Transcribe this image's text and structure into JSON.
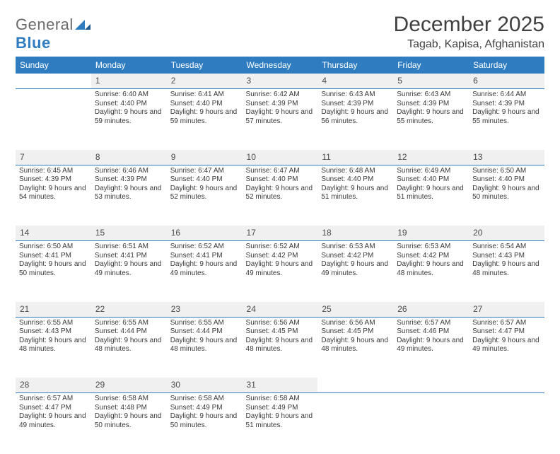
{
  "brand": {
    "word1": "General",
    "word2": "Blue"
  },
  "title": "December 2025",
  "location": "Tagab, Kapisa, Afghanistan",
  "colors": {
    "header_bg": "#2f7dc0",
    "header_text": "#ffffff",
    "daynum_bg": "#f0f0f0",
    "rule": "#2f7dc0",
    "body_text": "#3a3a3a"
  },
  "weekdays": [
    "Sunday",
    "Monday",
    "Tuesday",
    "Wednesday",
    "Thursday",
    "Friday",
    "Saturday"
  ],
  "weeks": [
    [
      null,
      {
        "n": "1",
        "sr": "6:40 AM",
        "ss": "4:40 PM",
        "dl": "9 hours and 59 minutes."
      },
      {
        "n": "2",
        "sr": "6:41 AM",
        "ss": "4:40 PM",
        "dl": "9 hours and 59 minutes."
      },
      {
        "n": "3",
        "sr": "6:42 AM",
        "ss": "4:39 PM",
        "dl": "9 hours and 57 minutes."
      },
      {
        "n": "4",
        "sr": "6:43 AM",
        "ss": "4:39 PM",
        "dl": "9 hours and 56 minutes."
      },
      {
        "n": "5",
        "sr": "6:43 AM",
        "ss": "4:39 PM",
        "dl": "9 hours and 55 minutes."
      },
      {
        "n": "6",
        "sr": "6:44 AM",
        "ss": "4:39 PM",
        "dl": "9 hours and 55 minutes."
      }
    ],
    [
      {
        "n": "7",
        "sr": "6:45 AM",
        "ss": "4:39 PM",
        "dl": "9 hours and 54 minutes."
      },
      {
        "n": "8",
        "sr": "6:46 AM",
        "ss": "4:39 PM",
        "dl": "9 hours and 53 minutes."
      },
      {
        "n": "9",
        "sr": "6:47 AM",
        "ss": "4:40 PM",
        "dl": "9 hours and 52 minutes."
      },
      {
        "n": "10",
        "sr": "6:47 AM",
        "ss": "4:40 PM",
        "dl": "9 hours and 52 minutes."
      },
      {
        "n": "11",
        "sr": "6:48 AM",
        "ss": "4:40 PM",
        "dl": "9 hours and 51 minutes."
      },
      {
        "n": "12",
        "sr": "6:49 AM",
        "ss": "4:40 PM",
        "dl": "9 hours and 51 minutes."
      },
      {
        "n": "13",
        "sr": "6:50 AM",
        "ss": "4:40 PM",
        "dl": "9 hours and 50 minutes."
      }
    ],
    [
      {
        "n": "14",
        "sr": "6:50 AM",
        "ss": "4:41 PM",
        "dl": "9 hours and 50 minutes."
      },
      {
        "n": "15",
        "sr": "6:51 AM",
        "ss": "4:41 PM",
        "dl": "9 hours and 49 minutes."
      },
      {
        "n": "16",
        "sr": "6:52 AM",
        "ss": "4:41 PM",
        "dl": "9 hours and 49 minutes."
      },
      {
        "n": "17",
        "sr": "6:52 AM",
        "ss": "4:42 PM",
        "dl": "9 hours and 49 minutes."
      },
      {
        "n": "18",
        "sr": "6:53 AM",
        "ss": "4:42 PM",
        "dl": "9 hours and 49 minutes."
      },
      {
        "n": "19",
        "sr": "6:53 AM",
        "ss": "4:42 PM",
        "dl": "9 hours and 48 minutes."
      },
      {
        "n": "20",
        "sr": "6:54 AM",
        "ss": "4:43 PM",
        "dl": "9 hours and 48 minutes."
      }
    ],
    [
      {
        "n": "21",
        "sr": "6:55 AM",
        "ss": "4:43 PM",
        "dl": "9 hours and 48 minutes."
      },
      {
        "n": "22",
        "sr": "6:55 AM",
        "ss": "4:44 PM",
        "dl": "9 hours and 48 minutes."
      },
      {
        "n": "23",
        "sr": "6:55 AM",
        "ss": "4:44 PM",
        "dl": "9 hours and 48 minutes."
      },
      {
        "n": "24",
        "sr": "6:56 AM",
        "ss": "4:45 PM",
        "dl": "9 hours and 48 minutes."
      },
      {
        "n": "25",
        "sr": "6:56 AM",
        "ss": "4:45 PM",
        "dl": "9 hours and 48 minutes."
      },
      {
        "n": "26",
        "sr": "6:57 AM",
        "ss": "4:46 PM",
        "dl": "9 hours and 49 minutes."
      },
      {
        "n": "27",
        "sr": "6:57 AM",
        "ss": "4:47 PM",
        "dl": "9 hours and 49 minutes."
      }
    ],
    [
      {
        "n": "28",
        "sr": "6:57 AM",
        "ss": "4:47 PM",
        "dl": "9 hours and 49 minutes."
      },
      {
        "n": "29",
        "sr": "6:58 AM",
        "ss": "4:48 PM",
        "dl": "9 hours and 50 minutes."
      },
      {
        "n": "30",
        "sr": "6:58 AM",
        "ss": "4:49 PM",
        "dl": "9 hours and 50 minutes."
      },
      {
        "n": "31",
        "sr": "6:58 AM",
        "ss": "4:49 PM",
        "dl": "9 hours and 51 minutes."
      },
      null,
      null,
      null
    ]
  ],
  "labels": {
    "sunrise": "Sunrise:",
    "sunset": "Sunset:",
    "daylight": "Daylight:"
  }
}
